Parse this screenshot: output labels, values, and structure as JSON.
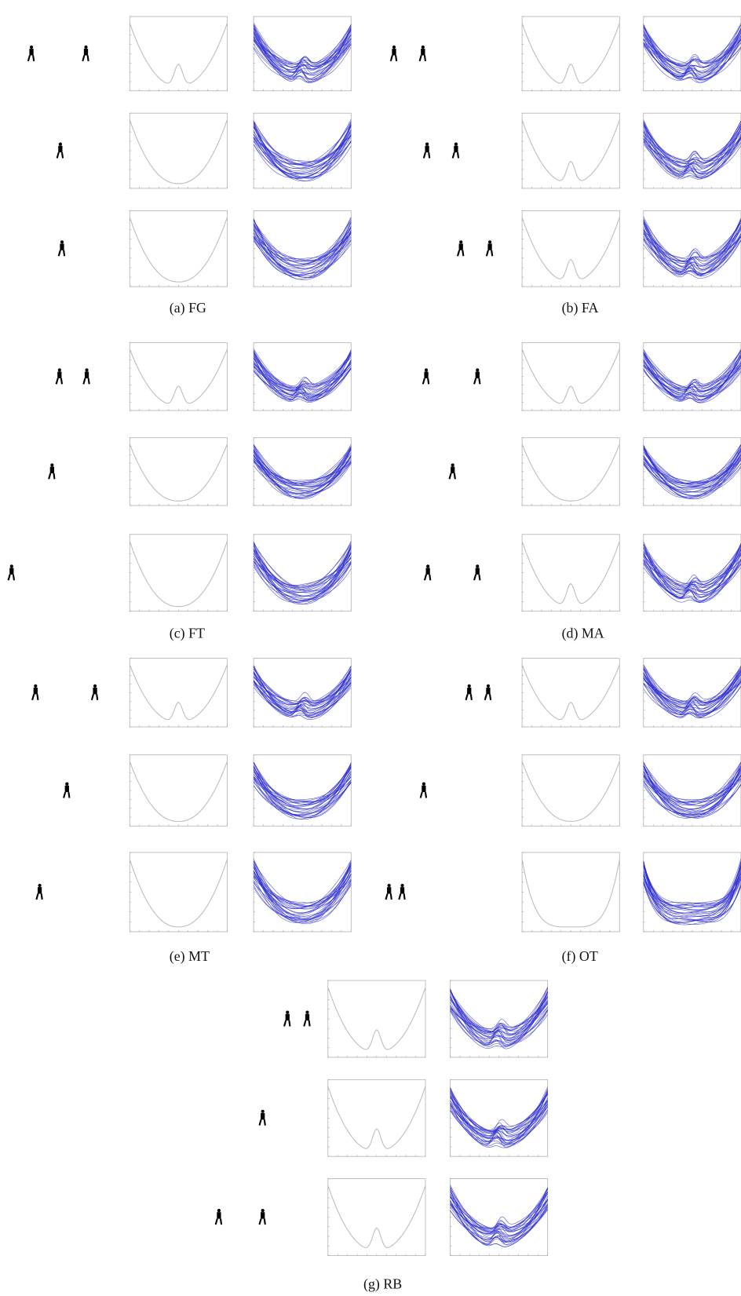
{
  "panels": [
    {
      "caption": "(a) FG"
    },
    {
      "caption": "(b) FA"
    },
    {
      "caption": "(c) FT"
    },
    {
      "caption": "(d) MA"
    },
    {
      "caption": "(e) MT"
    },
    {
      "caption": "(f) OT"
    },
    {
      "caption": "(g) RB"
    }
  ]
}
